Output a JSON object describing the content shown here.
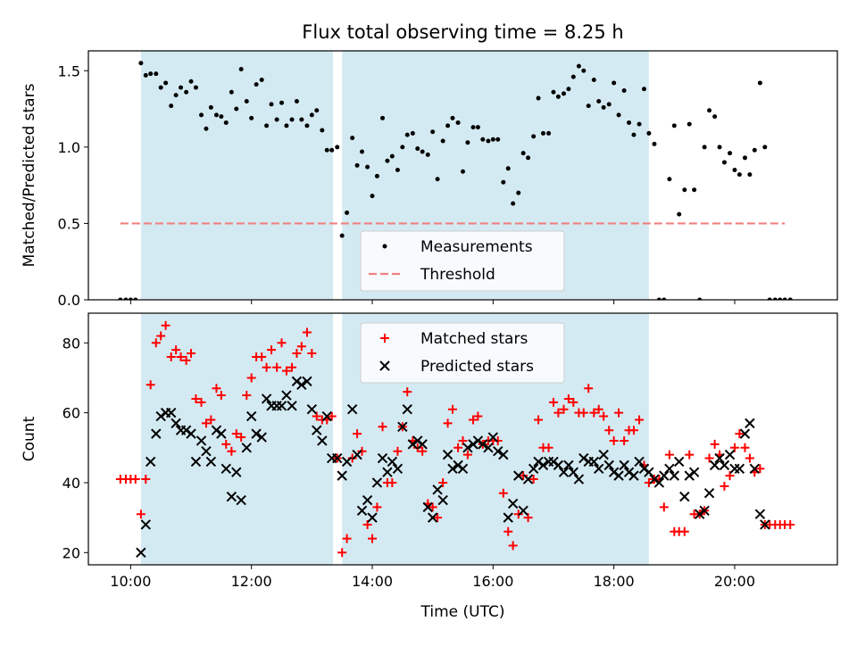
{
  "chart_data": {
    "title": "Flux total observing time = 8.25 h",
    "xlabel": "Time (UTC)",
    "x_units": "hours (UTC, decimal)",
    "xlim": [
      9.3,
      21.7
    ],
    "x_ticks": [
      10,
      12,
      14,
      16,
      18,
      20
    ],
    "x_tick_labels": [
      "10:00",
      "12:00",
      "14:00",
      "16:00",
      "18:00",
      "20:00"
    ],
    "shaded_intervals": [
      [
        10.17,
        13.35
      ],
      [
        13.5,
        18.58
      ]
    ],
    "shade_color": "#add8e6",
    "top": {
      "type": "scatter",
      "ylabel": "Matched/Predicted stars",
      "ylim": [
        0,
        1.63
      ],
      "y_ticks": [
        0.0,
        0.5,
        1.0,
        1.5
      ],
      "y_tick_labels": [
        "0.0",
        "0.5",
        "1.0",
        "1.5"
      ],
      "threshold": {
        "value": 0.5,
        "x_range": [
          9.83,
          20.83
        ],
        "color": "#f08080"
      },
      "legend": {
        "position": "lower-center",
        "entries": [
          "Measurements",
          "Threshold"
        ]
      },
      "series": [
        {
          "name": "Measurements",
          "color": "#000000",
          "x": [
            9.83,
            9.92,
            10.0,
            10.08,
            10.17,
            10.25,
            10.33,
            10.42,
            10.5,
            10.58,
            10.67,
            10.75,
            10.83,
            10.92,
            11.0,
            11.08,
            11.17,
            11.25,
            11.33,
            11.42,
            11.5,
            11.58,
            11.67,
            11.75,
            11.83,
            11.92,
            12.0,
            12.08,
            12.17,
            12.25,
            12.33,
            12.42,
            12.5,
            12.58,
            12.67,
            12.75,
            12.83,
            12.92,
            13.0,
            13.08,
            13.17,
            13.25,
            13.33,
            13.42,
            13.5,
            13.58,
            13.67,
            13.75,
            13.83,
            13.92,
            14.0,
            14.08,
            14.17,
            14.25,
            14.33,
            14.42,
            14.5,
            14.58,
            14.67,
            14.75,
            14.83,
            14.92,
            15.0,
            15.08,
            15.17,
            15.25,
            15.33,
            15.42,
            15.5,
            15.58,
            15.67,
            15.75,
            15.83,
            15.92,
            16.0,
            16.08,
            16.17,
            16.25,
            16.33,
            16.42,
            16.5,
            16.58,
            16.67,
            16.75,
            16.83,
            16.92,
            17.0,
            17.08,
            17.17,
            17.25,
            17.33,
            17.42,
            17.5,
            17.58,
            17.67,
            17.75,
            17.83,
            17.92,
            18.0,
            18.08,
            18.17,
            18.25,
            18.33,
            18.42,
            18.5,
            18.58,
            18.67,
            18.75,
            18.83,
            18.92,
            19.0,
            19.08,
            19.17,
            19.25,
            19.33,
            19.42,
            19.5,
            19.58,
            19.67,
            19.75,
            19.83,
            19.92,
            20.0,
            20.08,
            20.17,
            20.25,
            20.33,
            20.42,
            20.5,
            20.58,
            20.67,
            20.75,
            20.83,
            20.92
          ],
          "y": [
            0,
            0,
            0,
            0,
            1.55,
            1.47,
            1.48,
            1.48,
            1.39,
            1.42,
            1.27,
            1.34,
            1.39,
            1.36,
            1.43,
            1.39,
            1.21,
            1.12,
            1.26,
            1.21,
            1.2,
            1.16,
            1.36,
            1.25,
            1.51,
            1.3,
            1.19,
            1.41,
            1.44,
            1.14,
            1.28,
            1.18,
            1.29,
            1.14,
            1.18,
            1.3,
            1.18,
            1.14,
            1.21,
            1.24,
            1.11,
            0.98,
            0.98,
            1.0,
            0.42,
            0.57,
            1.06,
            0.88,
            0.97,
            0.87,
            0.68,
            0.81,
            1.19,
            0.91,
            0.94,
            0.85,
            1.0,
            1.08,
            1.09,
            0.99,
            0.97,
            0.95,
            1.1,
            0.79,
            1.04,
            1.14,
            1.19,
            1.16,
            0.84,
            1.03,
            1.13,
            1.13,
            1.05,
            1.04,
            1.05,
            1.05,
            0.77,
            0.86,
            0.63,
            0.7,
            0.96,
            0.93,
            1.07,
            1.32,
            1.09,
            1.09,
            1.36,
            1.33,
            1.35,
            1.38,
            1.46,
            1.53,
            1.5,
            1.27,
            1.44,
            1.3,
            1.26,
            1.28,
            1.42,
            1.21,
            1.37,
            1.16,
            1.08,
            1.15,
            1.38,
            1.09,
            1.02,
            0,
            0,
            0.79,
            1.14,
            0.56,
            0.72,
            1.15,
            0.72,
            0,
            1.0,
            1.24,
            1.2,
            1.0,
            0.9,
            0.96,
            0.85,
            0.82,
            0.93,
            0.82,
            0.98,
            1.42,
            1.0,
            0,
            0,
            0,
            0,
            0
          ]
        }
      ]
    },
    "bottom": {
      "type": "scatter",
      "ylabel": "Count",
      "ylim": [
        16.5,
        88.5
      ],
      "y_ticks": [
        20,
        40,
        60,
        80
      ],
      "y_tick_labels": [
        "20",
        "40",
        "60",
        "80"
      ],
      "legend": {
        "position": "upper-center",
        "entries": [
          "Matched stars",
          "Predicted stars"
        ]
      },
      "series": [
        {
          "name": "Matched stars",
          "marker": "plus",
          "color": "#ff0000",
          "x": [
            9.83,
            9.92,
            10.0,
            10.08,
            10.17,
            10.25,
            10.33,
            10.42,
            10.5,
            10.58,
            10.67,
            10.75,
            10.83,
            10.92,
            11.0,
            11.08,
            11.17,
            11.25,
            11.33,
            11.42,
            11.5,
            11.58,
            11.67,
            11.75,
            11.83,
            11.92,
            12.0,
            12.08,
            12.17,
            12.25,
            12.33,
            12.42,
            12.5,
            12.58,
            12.67,
            12.75,
            12.83,
            12.92,
            13.0,
            13.08,
            13.17,
            13.25,
            13.33,
            13.42,
            13.5,
            13.58,
            13.67,
            13.75,
            13.83,
            13.92,
            14.0,
            14.08,
            14.17,
            14.25,
            14.33,
            14.42,
            14.5,
            14.58,
            14.67,
            14.75,
            14.83,
            14.92,
            15.0,
            15.08,
            15.17,
            15.25,
            15.33,
            15.42,
            15.5,
            15.58,
            15.67,
            15.75,
            15.83,
            15.92,
            16.0,
            16.08,
            16.17,
            16.25,
            16.33,
            16.42,
            16.5,
            16.58,
            16.67,
            16.75,
            16.83,
            16.92,
            17.0,
            17.08,
            17.17,
            17.25,
            17.33,
            17.42,
            17.5,
            17.58,
            17.67,
            17.75,
            17.83,
            17.92,
            18.0,
            18.08,
            18.17,
            18.25,
            18.33,
            18.42,
            18.5,
            18.58,
            18.67,
            18.75,
            18.83,
            18.92,
            19.0,
            19.08,
            19.17,
            19.25,
            19.33,
            19.42,
            19.5,
            19.58,
            19.67,
            19.75,
            19.83,
            19.92,
            20.0,
            20.08,
            20.17,
            20.25,
            20.33,
            20.42,
            20.5,
            20.58,
            20.67,
            20.75,
            20.83,
            20.92
          ],
          "y": [
            41,
            41,
            41,
            41,
            31,
            41,
            68,
            80,
            82,
            85,
            76,
            78,
            76,
            75,
            77,
            64,
            63,
            57,
            58,
            67,
            65,
            51,
            49,
            54,
            53,
            65,
            70,
            76,
            76,
            73,
            78,
            73,
            80,
            72,
            73,
            77,
            79,
            83,
            77,
            59,
            58,
            58,
            59,
            47,
            20,
            24,
            47,
            54,
            49,
            28,
            24,
            33,
            56,
            40,
            40,
            49,
            56,
            66,
            52,
            50,
            49,
            34,
            33,
            30,
            40,
            57,
            61,
            50,
            52,
            48,
            58,
            59,
            51,
            52,
            52,
            52,
            37,
            26,
            22,
            31,
            42,
            30,
            41,
            58,
            50,
            50,
            63,
            60,
            61,
            64,
            63,
            60,
            60,
            67,
            60,
            61,
            59,
            55,
            52,
            60,
            52,
            55,
            55,
            58,
            45,
            40,
            41,
            41,
            33,
            48,
            26,
            26,
            26,
            48,
            31,
            31,
            32,
            47,
            51,
            48,
            39,
            42,
            50,
            54,
            50,
            47,
            43,
            44,
            28,
            28,
            28,
            28,
            28,
            28
          ]
        },
        {
          "name": "Predicted stars",
          "marker": "x",
          "color": "#000000",
          "x": [
            10.17,
            10.25,
            10.33,
            10.42,
            10.5,
            10.58,
            10.67,
            10.75,
            10.83,
            10.92,
            11.0,
            11.08,
            11.17,
            11.25,
            11.33,
            11.42,
            11.5,
            11.58,
            11.67,
            11.75,
            11.83,
            11.92,
            12.0,
            12.08,
            12.17,
            12.25,
            12.33,
            12.42,
            12.5,
            12.58,
            12.67,
            12.75,
            12.83,
            12.92,
            13.0,
            13.08,
            13.17,
            13.25,
            13.33,
            13.42,
            13.5,
            13.58,
            13.67,
            13.75,
            13.83,
            13.92,
            14.0,
            14.08,
            14.17,
            14.25,
            14.33,
            14.42,
            14.5,
            14.58,
            14.67,
            14.75,
            14.83,
            14.92,
            15.0,
            15.08,
            15.17,
            15.25,
            15.33,
            15.42,
            15.5,
            15.58,
            15.67,
            15.75,
            15.83,
            15.92,
            16.0,
            16.08,
            16.17,
            16.25,
            16.33,
            16.42,
            16.5,
            16.58,
            16.67,
            16.75,
            16.83,
            16.92,
            17.0,
            17.08,
            17.17,
            17.25,
            17.33,
            17.42,
            17.5,
            17.58,
            17.67,
            17.75,
            17.83,
            17.92,
            18.0,
            18.08,
            18.17,
            18.25,
            18.33,
            18.42,
            18.5,
            18.58,
            18.67,
            18.75,
            18.83,
            18.92,
            19.0,
            19.08,
            19.17,
            19.25,
            19.33,
            19.42,
            19.5,
            19.58,
            19.67,
            19.75,
            19.83,
            19.92,
            20.0,
            20.08,
            20.17,
            20.25,
            20.33,
            20.42,
            20.5
          ],
          "y": [
            20,
            28,
            46,
            54,
            59,
            60,
            60,
            57,
            55,
            55,
            54,
            46,
            52,
            49,
            46,
            55,
            54,
            44,
            36,
            43,
            35,
            50,
            59,
            54,
            53,
            64,
            62,
            62,
            62,
            65,
            62,
            69,
            68,
            69,
            61,
            55,
            52,
            59,
            47,
            47,
            42,
            46,
            61,
            48,
            32,
            35,
            30,
            40,
            47,
            43,
            46,
            44,
            56,
            61,
            51,
            52,
            51,
            33,
            30,
            38,
            35,
            48,
            44,
            45,
            44,
            50,
            51,
            52,
            51,
            50,
            53,
            49,
            48,
            30,
            34,
            42,
            32,
            41,
            44,
            46,
            45,
            46,
            46,
            45,
            43,
            45,
            43,
            41,
            47,
            46,
            46,
            44,
            48,
            45,
            43,
            42,
            45,
            43,
            42,
            46,
            44,
            43,
            41,
            40,
            42,
            44,
            42,
            46,
            36,
            42,
            43,
            31,
            32,
            37,
            45,
            47,
            45,
            48,
            44,
            44,
            54,
            57,
            44,
            31,
            28
          ]
        }
      ]
    }
  }
}
